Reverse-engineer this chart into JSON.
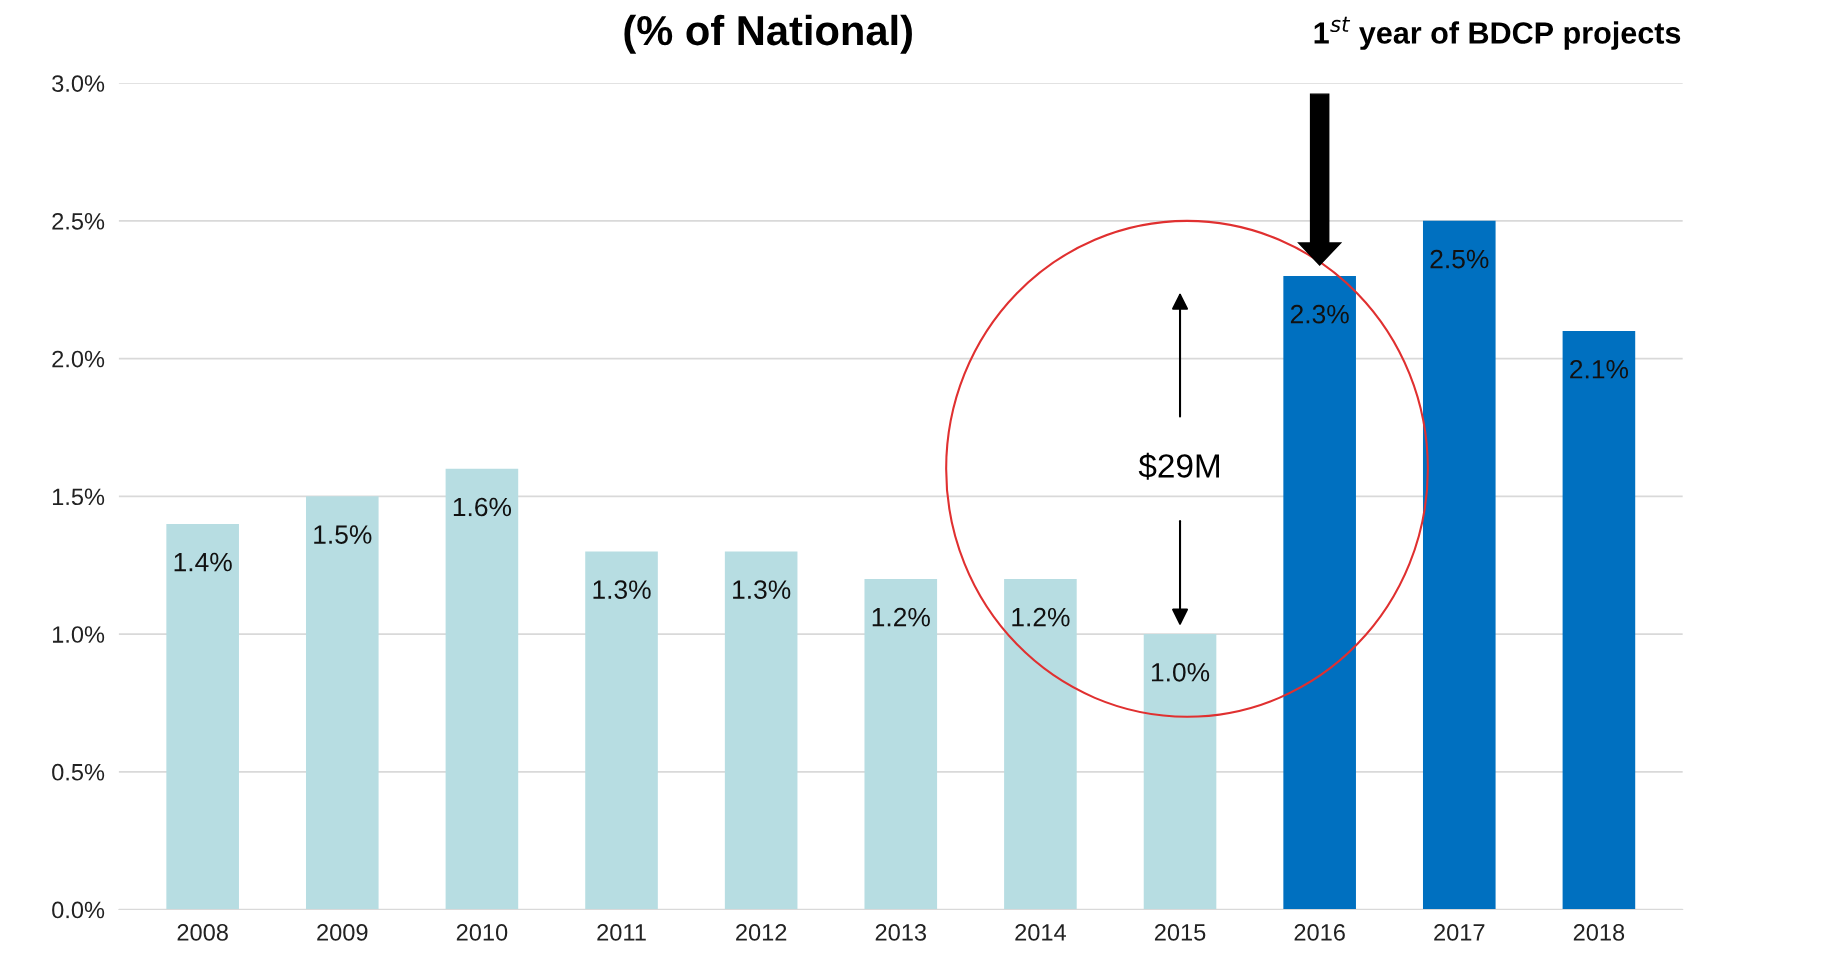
{
  "chart_data": {
    "type": "bar",
    "title": "(% of National)",
    "categories": [
      "2008",
      "2009",
      "2010",
      "2011",
      "2012",
      "2013",
      "2014",
      "2015",
      "2016",
      "2017",
      "2018"
    ],
    "values": [
      1.4,
      1.5,
      1.6,
      1.3,
      1.3,
      1.2,
      1.2,
      1.0,
      2.3,
      2.5,
      2.1
    ],
    "colors": [
      "#b7dde2",
      "#b7dde2",
      "#b7dde2",
      "#b7dde2",
      "#b7dde2",
      "#b7dde2",
      "#b7dde2",
      "#b7dde2",
      "#0070c0",
      "#0070c0",
      "#0070c0"
    ],
    "value_labels": [
      "1.4%",
      "1.5%",
      "1.6%",
      "1.3%",
      "1.3%",
      "1.2%",
      "1.2%",
      "1.0%",
      "2.3%",
      "2.5%",
      "2.1%"
    ],
    "ylim": [
      0,
      3.0
    ],
    "yticks": [
      {
        "value": 0,
        "label": "0.0%"
      },
      {
        "value": 0.5,
        "label": "0.5%"
      },
      {
        "value": 1.0,
        "label": "1.0%"
      },
      {
        "value": 1.5,
        "label": "1.5%"
      },
      {
        "value": 2.0,
        "label": "2.0%"
      },
      {
        "value": 2.5,
        "label": "2.5%"
      },
      {
        "value": 3.0,
        "label": "3.0%"
      }
    ],
    "grid": "y",
    "annotations": [
      "1$^{st}$ year of BDCP projects",
      "$29M"
    ]
  }
}
